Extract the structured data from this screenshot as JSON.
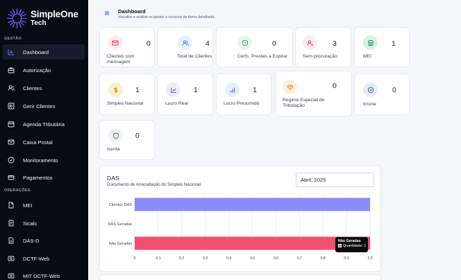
{
  "brand": {
    "name": "SimpleOne",
    "tagline": "Tech"
  },
  "sidebar": {
    "sections": [
      {
        "label": "GESTÃO"
      },
      {
        "label": "OPERAÇÕES"
      }
    ],
    "items": [
      {
        "label": "Dashboard",
        "icon": "bar-chart-icon",
        "active": true
      },
      {
        "label": "Autorização",
        "icon": "briefcase-icon"
      },
      {
        "label": "Clientes",
        "icon": "users-icon"
      },
      {
        "label": "Gerir Clientes",
        "icon": "id-card-icon"
      },
      {
        "label": "Agenda Tributária",
        "icon": "calendar-icon"
      },
      {
        "label": "Caixa Postal",
        "icon": "mail-icon"
      },
      {
        "label": "Monitoramento",
        "icon": "check-circle-icon"
      },
      {
        "label": "Pagamentos",
        "icon": "card-icon"
      },
      {
        "label": "MEI",
        "icon": "file-icon"
      },
      {
        "label": "Sicalc",
        "icon": "document-icon"
      },
      {
        "label": "DAS-D",
        "icon": "file-text-icon"
      },
      {
        "label": "DCTF-Web",
        "icon": "receipt-icon"
      },
      {
        "label": "MIT DCTF-Web",
        "icon": "receipt-icon"
      }
    ]
  },
  "header": {
    "title": "Dashboard",
    "subtitle": "Visualize e analise os gastos e recursos de forma detalhada."
  },
  "cards": [
    {
      "label": "Clientes com mensagem",
      "value": "0",
      "icon": "mail-icon",
      "color": "#e0344b",
      "bg": "#fdecee"
    },
    {
      "label": "Total de Clientes",
      "value": "4",
      "icon": "users-icon",
      "color": "#2f7bd8",
      "bg": "#e8f1fc"
    },
    {
      "label": "Certs. Prestes a Expirar",
      "value": "0",
      "icon": "shield-icon",
      "color": "#1f9a5a",
      "bg": "#e6f6ee"
    },
    {
      "label": "Sem procuração",
      "value": "3",
      "icon": "user-x-icon",
      "color": "#e0344b",
      "bg": "#fdecee"
    },
    {
      "label": "MEI",
      "value": "1",
      "icon": "store-icon",
      "color": "#1f9a5a",
      "bg": "#d8f3e3"
    },
    {
      "label": "Simples Nacional",
      "value": "1",
      "icon": "dollar-icon",
      "color": "#b58a00",
      "bg": "#fbf1c9"
    },
    {
      "label": "Lucro Real",
      "value": "1",
      "icon": "chart-icon",
      "color": "#6b4fd8",
      "bg": "#efeafd"
    },
    {
      "label": "Lucro Presumido",
      "value": "1",
      "icon": "bars-icon",
      "color": "#2f6fd8",
      "bg": "#e7effd"
    },
    {
      "label": "Regime Especial de Tributação",
      "value": "0",
      "icon": "diamond-icon",
      "color": "#e08a1a",
      "bg": "#fdf0de"
    },
    {
      "label": "Imune",
      "value": "0",
      "icon": "shield-check-icon",
      "color": "#2f4fb8",
      "bg": "#e8ecf8"
    },
    {
      "label": "Isenta",
      "value": "0",
      "icon": "shield-outline-icon",
      "color": "#5a6478",
      "bg": "#eef0f4"
    }
  ],
  "das": {
    "title": "DAS",
    "subtitle": "Documento de Arrecadação do Simples Nacional.",
    "period": "Abril, 2025",
    "tooltip": {
      "title": "Não Geradas",
      "line": "Quantidade: 1"
    }
  },
  "chart_data": {
    "type": "bar",
    "orientation": "horizontal",
    "categories": [
      "Clientes DAS",
      "DAS Geradas",
      "Não Geradas"
    ],
    "values": [
      1,
      0,
      1
    ],
    "bar_colors": [
      "#8a8cf7",
      "#8a8cf7",
      "#f1506f"
    ],
    "xlim": [
      0,
      1.0
    ],
    "xticks": [
      "0",
      "0,1",
      "0,2",
      "0,3",
      "0,4",
      "0,5",
      "0,6",
      "0,7",
      "0,8",
      "0,9",
      "1,0"
    ],
    "grid": true
  }
}
